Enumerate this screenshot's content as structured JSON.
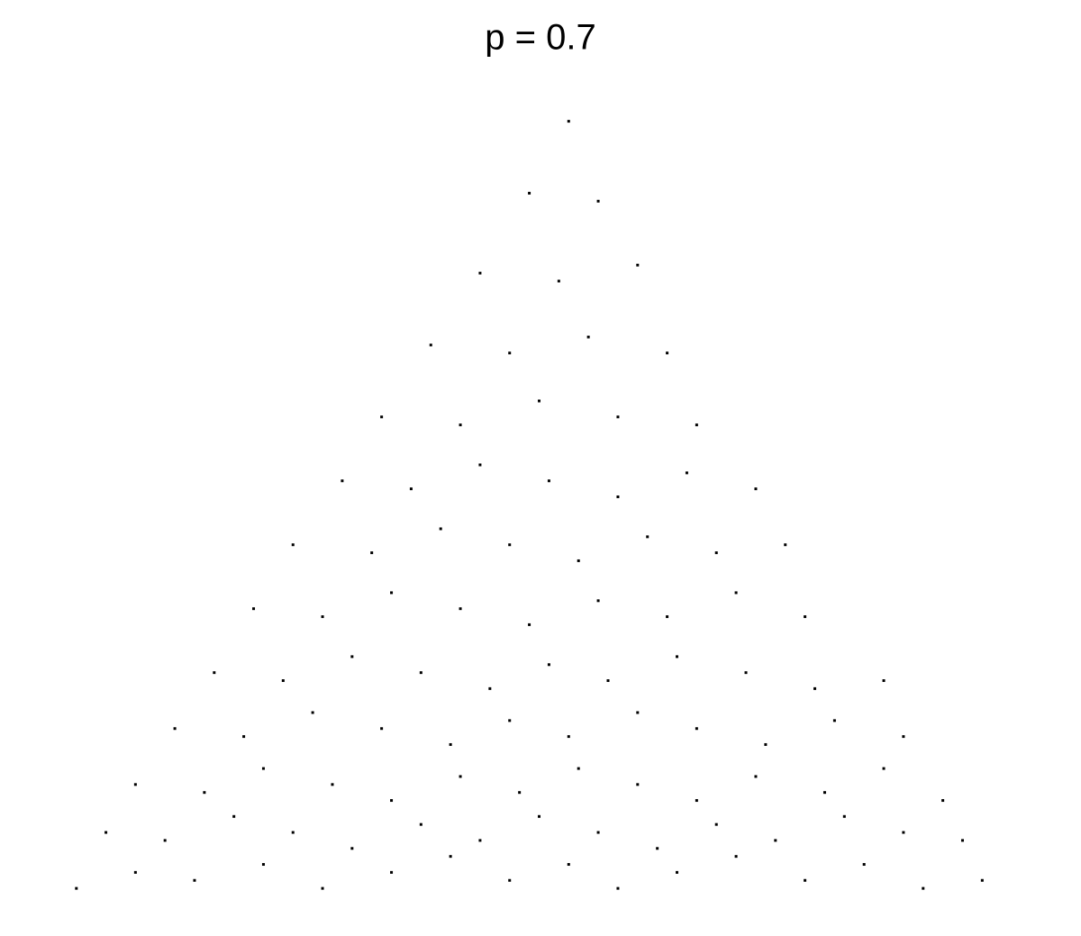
{
  "chart_data": {
    "type": "scatter",
    "title": "p = 0.7",
    "color": "#000000",
    "xlim": [
      0,
      1
    ],
    "ylim": [
      0,
      1
    ],
    "x": [
      0.03,
      0.09,
      0.15,
      0.22,
      0.28,
      0.35,
      0.41,
      0.47,
      0.53,
      0.58,
      0.64,
      0.7,
      0.77,
      0.83,
      0.89,
      0.95,
      0.06,
      0.12,
      0.19,
      0.25,
      0.31,
      0.38,
      0.44,
      0.5,
      0.56,
      0.62,
      0.68,
      0.74,
      0.81,
      0.87,
      0.93,
      0.09,
      0.16,
      0.22,
      0.29,
      0.35,
      0.42,
      0.48,
      0.54,
      0.6,
      0.66,
      0.72,
      0.79,
      0.85,
      0.91,
      0.13,
      0.2,
      0.27,
      0.34,
      0.41,
      0.47,
      0.53,
      0.6,
      0.66,
      0.73,
      0.8,
      0.87,
      0.17,
      0.24,
      0.31,
      0.38,
      0.45,
      0.51,
      0.57,
      0.64,
      0.71,
      0.78,
      0.85,
      0.21,
      0.28,
      0.35,
      0.42,
      0.49,
      0.56,
      0.63,
      0.7,
      0.77,
      0.25,
      0.33,
      0.4,
      0.47,
      0.54,
      0.61,
      0.68,
      0.75,
      0.3,
      0.37,
      0.44,
      0.51,
      0.58,
      0.65,
      0.72,
      0.34,
      0.42,
      0.5,
      0.58,
      0.66,
      0.39,
      0.47,
      0.55,
      0.63,
      0.44,
      0.52,
      0.6,
      0.49,
      0.56,
      0.53
    ],
    "y": [
      0.01,
      0.03,
      0.02,
      0.04,
      0.01,
      0.03,
      0.05,
      0.02,
      0.04,
      0.01,
      0.03,
      0.05,
      0.02,
      0.04,
      0.01,
      0.02,
      0.08,
      0.07,
      0.1,
      0.08,
      0.06,
      0.09,
      0.07,
      0.1,
      0.08,
      0.06,
      0.09,
      0.07,
      0.1,
      0.08,
      0.07,
      0.14,
      0.13,
      0.16,
      0.14,
      0.12,
      0.15,
      0.13,
      0.16,
      0.14,
      0.12,
      0.15,
      0.13,
      0.16,
      0.12,
      0.21,
      0.2,
      0.23,
      0.21,
      0.19,
      0.22,
      0.2,
      0.23,
      0.21,
      0.19,
      0.22,
      0.2,
      0.28,
      0.27,
      0.3,
      0.28,
      0.26,
      0.29,
      0.27,
      0.3,
      0.28,
      0.26,
      0.27,
      0.36,
      0.35,
      0.38,
      0.36,
      0.34,
      0.37,
      0.35,
      0.38,
      0.35,
      0.44,
      0.43,
      0.46,
      0.44,
      0.42,
      0.45,
      0.43,
      0.44,
      0.52,
      0.51,
      0.54,
      0.52,
      0.5,
      0.53,
      0.51,
      0.6,
      0.59,
      0.62,
      0.6,
      0.59,
      0.69,
      0.68,
      0.7,
      0.68,
      0.78,
      0.77,
      0.79,
      0.88,
      0.87,
      0.97
    ]
  }
}
